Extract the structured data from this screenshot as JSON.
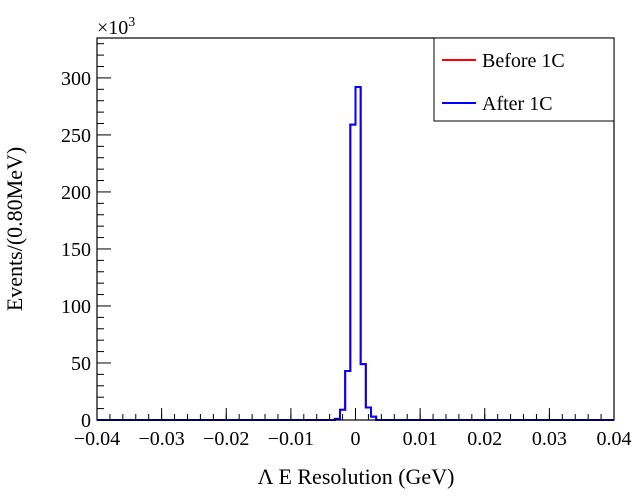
{
  "chart_data": {
    "type": "histogram",
    "xlabel": "Λ E Resolution (GeV)",
    "ylabel": "Events/(0.80MeV)",
    "y_multiplier": "×10",
    "y_multiplier_exp": "3",
    "xlim": [
      -0.04,
      0.04
    ],
    "ylim": [
      0,
      335
    ],
    "bin_width": 0.0008,
    "x_ticks": [
      {
        "value": -0.04,
        "label": "−0.04"
      },
      {
        "value": -0.03,
        "label": "−0.03"
      },
      {
        "value": -0.02,
        "label": "−0.02"
      },
      {
        "value": -0.01,
        "label": "−0.01"
      },
      {
        "value": 0,
        "label": "0"
      },
      {
        "value": 0.01,
        "label": "0.01"
      },
      {
        "value": 0.02,
        "label": "0.02"
      },
      {
        "value": 0.03,
        "label": "0.03"
      },
      {
        "value": 0.04,
        "label": "0.04"
      }
    ],
    "y_ticks": [
      {
        "value": 0,
        "label": "0"
      },
      {
        "value": 50,
        "label": "50"
      },
      {
        "value": 100,
        "label": "100"
      },
      {
        "value": 150,
        "label": "150"
      },
      {
        "value": 200,
        "label": "200"
      },
      {
        "value": 250,
        "label": "250"
      },
      {
        "value": 300,
        "label": "300"
      }
    ],
    "legend_position": "top-right",
    "series": [
      {
        "name": "Before 1C",
        "color": "#ff0000",
        "bins": [
          {
            "x0": -0.0032,
            "y": 1
          },
          {
            "x0": -0.0024,
            "y": 9
          },
          {
            "x0": -0.0016,
            "y": 43
          },
          {
            "x0": -0.0008,
            "y": 259
          },
          {
            "x0": 0.0,
            "y": 292
          },
          {
            "x0": 0.0008,
            "y": 49
          },
          {
            "x0": 0.0016,
            "y": 11
          },
          {
            "x0": 0.0024,
            "y": 3
          }
        ]
      },
      {
        "name": "After 1C",
        "color": "#0000ff",
        "bins": [
          {
            "x0": -0.0032,
            "y": 1
          },
          {
            "x0": -0.0024,
            "y": 9
          },
          {
            "x0": -0.0016,
            "y": 43
          },
          {
            "x0": -0.0008,
            "y": 259
          },
          {
            "x0": 0.0,
            "y": 292
          },
          {
            "x0": 0.0008,
            "y": 49
          },
          {
            "x0": 0.0016,
            "y": 11
          },
          {
            "x0": 0.0024,
            "y": 3
          }
        ]
      }
    ]
  }
}
